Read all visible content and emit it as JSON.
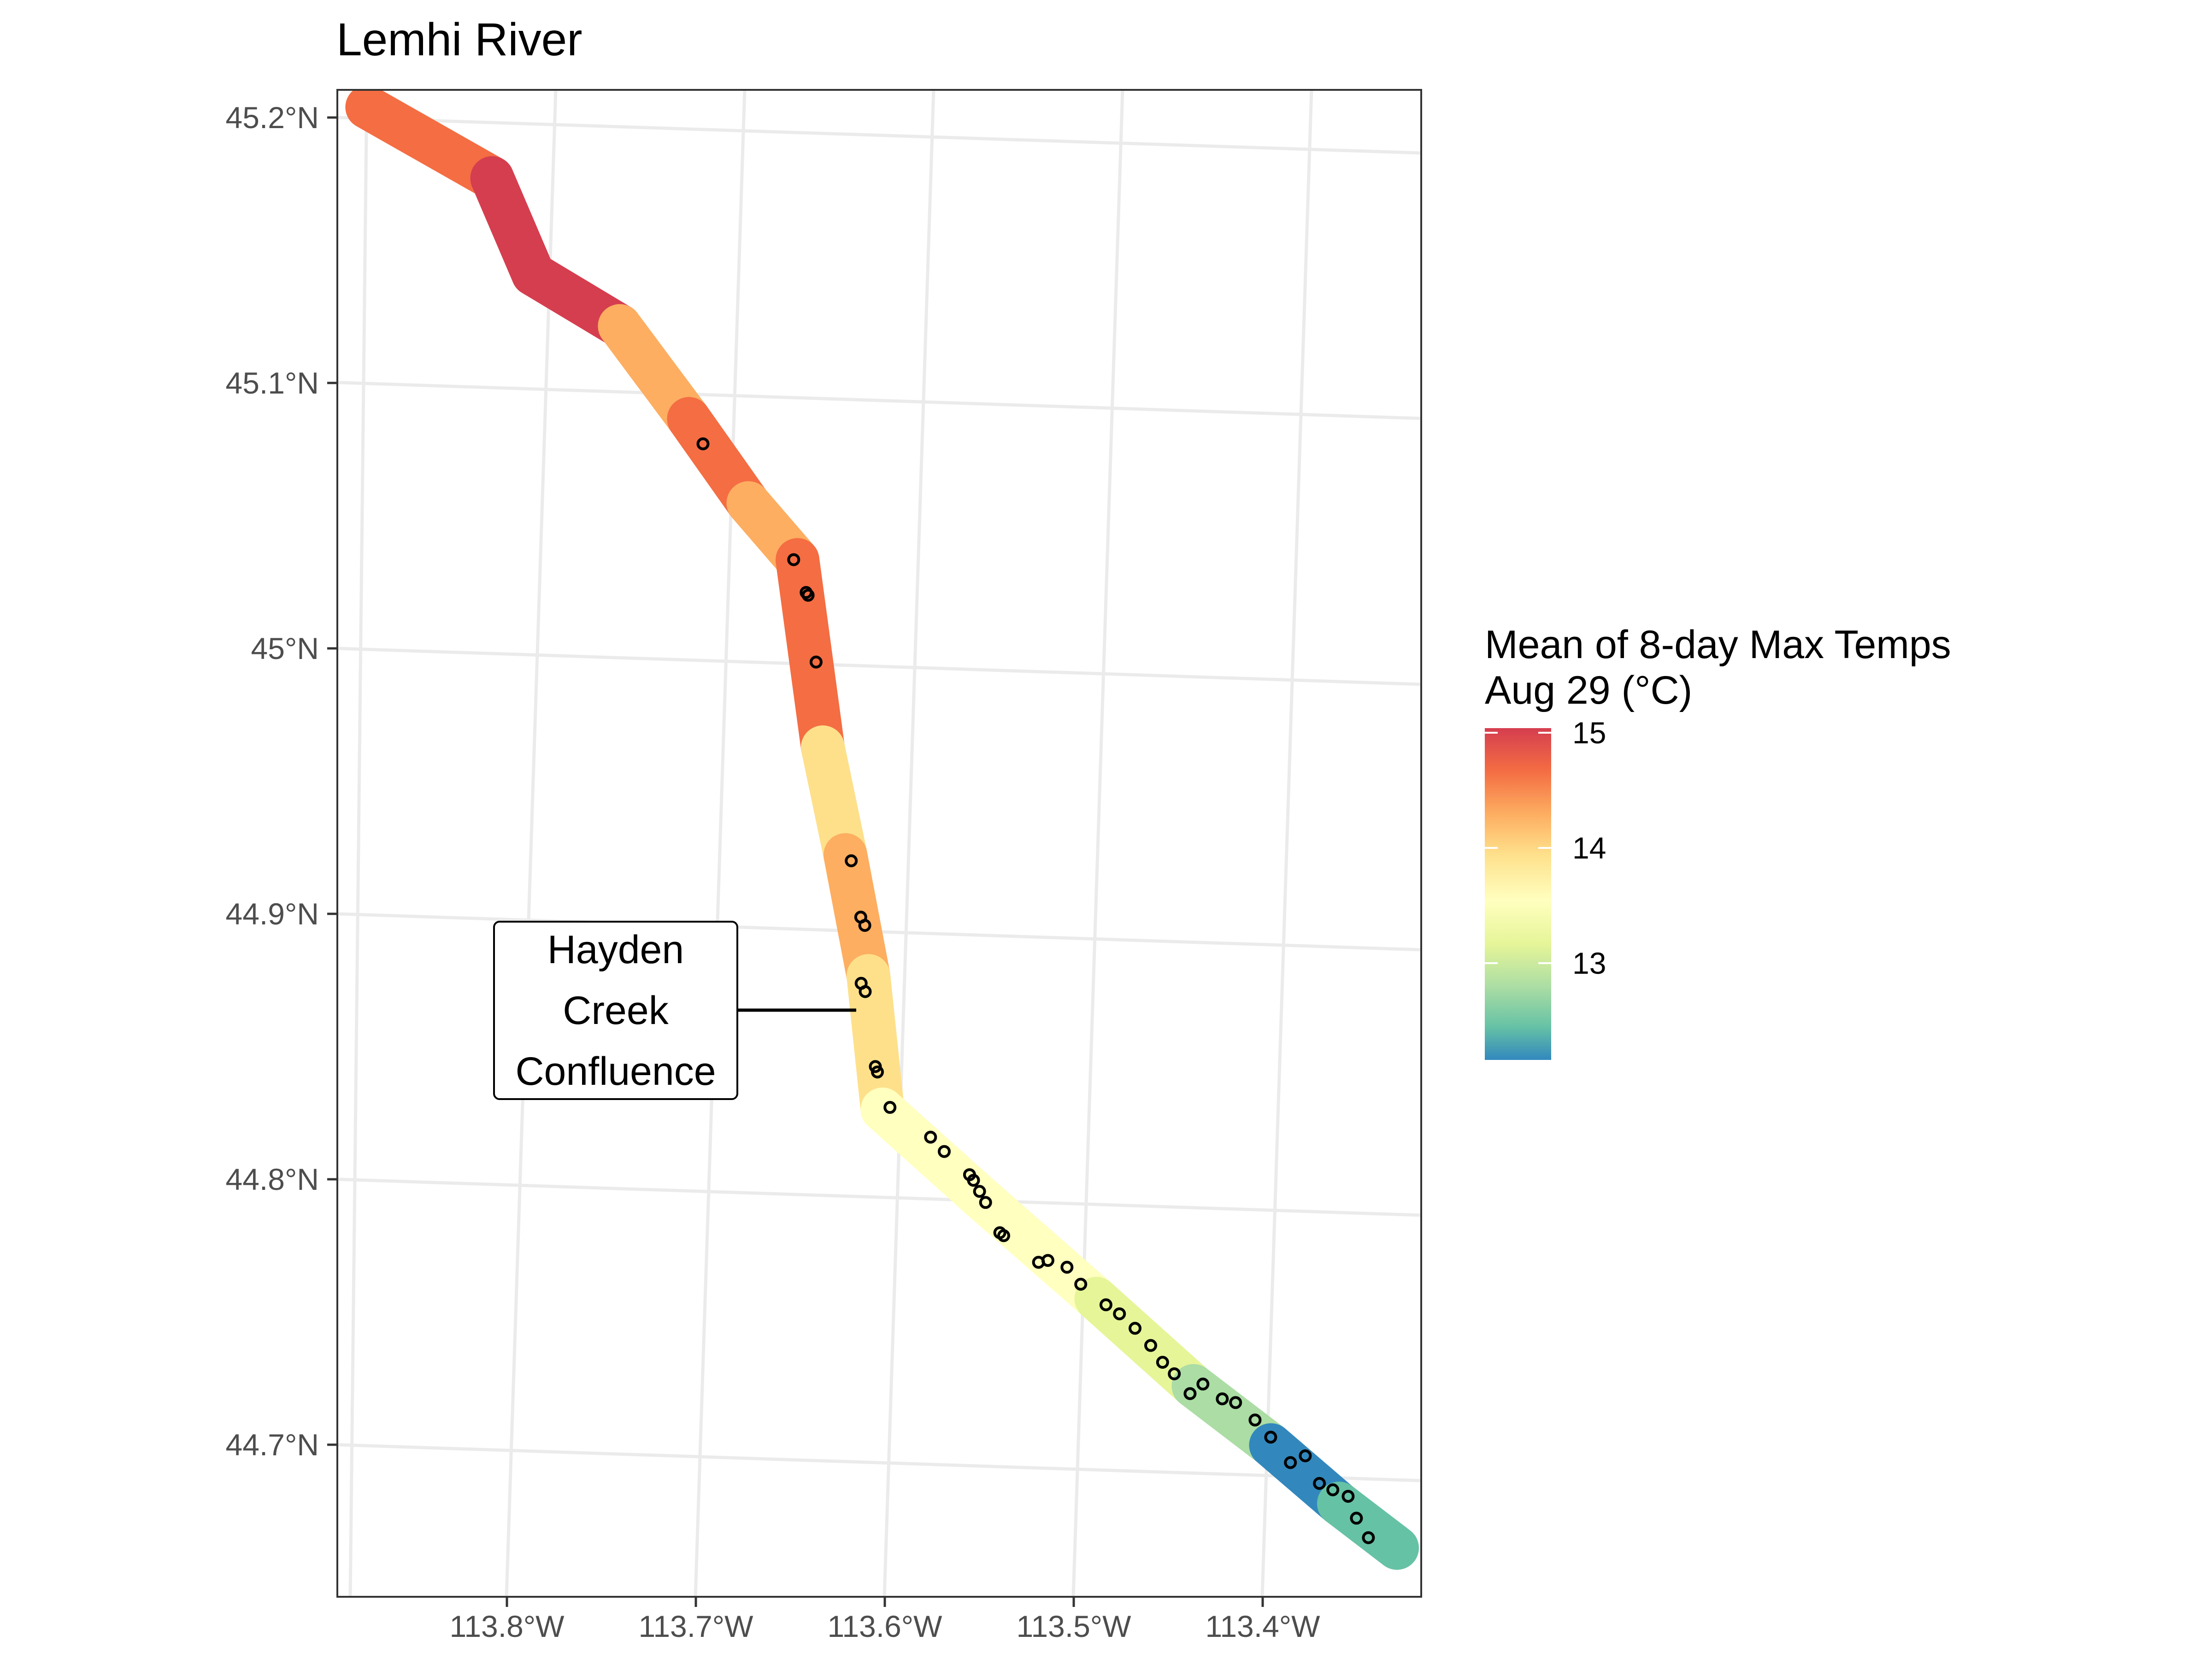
{
  "title": "Lemhi River",
  "axes": {
    "lat_ticks": [
      "45.2°N",
      "45.1°N",
      "45°N",
      "44.9°N",
      "44.8°N",
      "44.7°N"
    ],
    "lon_ticks": [
      "113.8°W",
      "113.7°W",
      "113.6°W",
      "113.5°W",
      "113.4°W"
    ]
  },
  "legend": {
    "title_line1": "Mean of 8-day Max Temps",
    "title_line2": "Aug 29 (°C)",
    "ticks": [
      "15",
      "14",
      "13"
    ],
    "colors": [
      "#d53e4f",
      "#f46d43",
      "#fdae61",
      "#fee08b",
      "#ffffbf",
      "#e6f598",
      "#abdda4",
      "#66c2a5",
      "#3288bd"
    ],
    "range": [
      12.1,
      15.0
    ]
  },
  "annotation": {
    "line1": "Hayden",
    "line2": "Creek",
    "line3": "Confluence"
  },
  "river": {
    "color_scale": "Spectral",
    "segments": [
      {
        "from": [
          -113.865,
          45.183
        ],
        "to": [
          -113.8,
          45.16
        ],
        "temp": 14.6
      },
      {
        "from": [
          -113.8,
          45.16
        ],
        "to": [
          -113.78,
          45.125
        ],
        "temp": 15.0
      },
      {
        "from": [
          -113.78,
          45.125
        ],
        "to": [
          -113.735,
          45.108
        ],
        "temp": 14.9
      },
      {
        "from": [
          -113.735,
          45.108
        ],
        "to": [
          -113.7,
          45.075
        ],
        "temp": 14.1
      },
      {
        "from": [
          -113.7,
          45.075
        ],
        "to": [
          -113.67,
          45.045
        ],
        "temp": 14.5
      },
      {
        "from": [
          -113.67,
          45.045
        ],
        "to": [
          -113.645,
          45.025
        ],
        "temp": 14.1
      },
      {
        "from": [
          -113.645,
          45.025
        ],
        "to": [
          -113.635,
          44.955
        ],
        "temp": 14.7
      },
      {
        "from": [
          -113.635,
          44.955
        ],
        "to": [
          -113.625,
          44.915
        ],
        "temp": 14.0
      },
      {
        "from": [
          -113.625,
          44.915
        ],
        "to": [
          -113.615,
          44.87
        ],
        "temp": 14.2
      },
      {
        "from": [
          -113.615,
          44.87
        ],
        "to": [
          -113.61,
          44.82
        ],
        "temp": 13.8
      },
      {
        "from": [
          -113.61,
          44.82
        ],
        "to": [
          -113.56,
          44.79
        ],
        "temp": 13.6
      },
      {
        "from": [
          -113.56,
          44.79
        ],
        "to": [
          -113.5,
          44.755
        ],
        "temp": 13.4
      },
      {
        "from": [
          -113.5,
          44.755
        ],
        "to": [
          -113.45,
          44.725
        ],
        "temp": 13.1
      },
      {
        "from": [
          -113.45,
          44.725
        ],
        "to": [
          -113.41,
          44.705
        ],
        "temp": 12.7
      },
      {
        "from": [
          -113.41,
          44.705
        ],
        "to": [
          -113.375,
          44.685
        ],
        "temp": 12.2
      },
      {
        "from": [
          -113.375,
          44.685
        ],
        "to": [
          -113.345,
          44.67
        ],
        "temp": 12.5
      }
    ],
    "sites": [
      [
        -113.693,
        45.066
      ],
      [
        -113.647,
        45.025
      ],
      [
        -113.641,
        45.013
      ],
      [
        -113.64,
        45.012
      ],
      [
        -113.637,
        44.987
      ],
      [
        -113.622,
        44.913
      ],
      [
        -113.618,
        44.892
      ],
      [
        -113.616,
        44.889
      ],
      [
        -113.619,
        44.867
      ],
      [
        -113.617,
        44.864
      ],
      [
        -113.613,
        44.836
      ],
      [
        -113.612,
        44.834
      ],
      [
        -113.606,
        44.821
      ],
      [
        -113.585,
        44.811
      ],
      [
        -113.578,
        44.806
      ],
      [
        -113.565,
        44.798
      ],
      [
        -113.563,
        44.796
      ],
      [
        -113.56,
        44.792
      ],
      [
        -113.557,
        44.788
      ],
      [
        -113.55,
        44.777
      ],
      [
        -113.548,
        44.776
      ],
      [
        -113.53,
        44.767
      ],
      [
        -113.525,
        44.768
      ],
      [
        -113.515,
        44.766
      ],
      [
        -113.508,
        44.76
      ],
      [
        -113.495,
        44.753
      ],
      [
        -113.488,
        44.75
      ],
      [
        -113.48,
        44.745
      ],
      [
        -113.472,
        44.739
      ],
      [
        -113.466,
        44.733
      ],
      [
        -113.46,
        44.729
      ],
      [
        -113.452,
        44.722
      ],
      [
        -113.445,
        44.726
      ],
      [
        -113.435,
        44.721
      ],
      [
        -113.428,
        44.72
      ],
      [
        -113.418,
        44.714
      ],
      [
        -113.41,
        44.708
      ],
      [
        -113.4,
        44.699
      ],
      [
        -113.392,
        44.702
      ],
      [
        -113.385,
        44.692
      ],
      [
        -113.378,
        44.69
      ],
      [
        -113.37,
        44.688
      ],
      [
        -113.366,
        44.68
      ],
      [
        -113.36,
        44.673
      ]
    ]
  }
}
